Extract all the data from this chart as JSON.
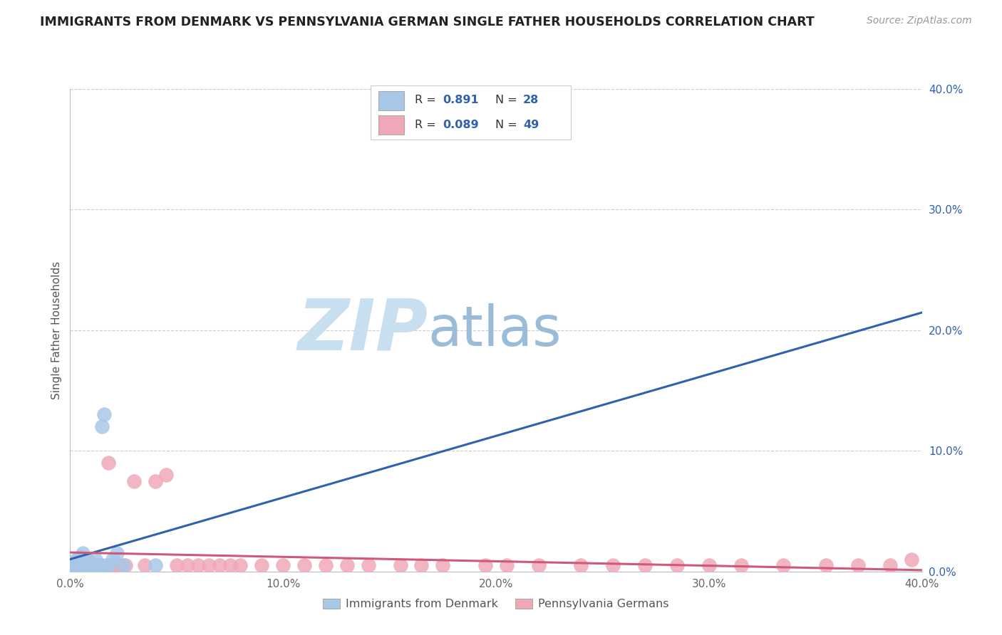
{
  "title": "IMMIGRANTS FROM DENMARK VS PENNSYLVANIA GERMAN SINGLE FATHER HOUSEHOLDS CORRELATION CHART",
  "source": "Source: ZipAtlas.com",
  "ylabel": "Single Father Households",
  "xlim": [
    0.0,
    0.4
  ],
  "ylim": [
    0.0,
    0.4
  ],
  "ytick_values": [
    0.0,
    0.1,
    0.2,
    0.3,
    0.4
  ],
  "ytick_labels": [
    "0.0%",
    "10.0%",
    "20.0%",
    "30.0%",
    "40.0%"
  ],
  "xtick_values": [
    0.0,
    0.1,
    0.2,
    0.3,
    0.4
  ],
  "xtick_labels": [
    "0.0%",
    "10.0%",
    "20.0%",
    "30.0%",
    "40.0%"
  ],
  "blue_R": 0.891,
  "blue_N": 28,
  "pink_R": 0.089,
  "pink_N": 49,
  "blue_color": "#a8c8e8",
  "pink_color": "#f0a8b8",
  "blue_line_color": "#3060b0",
  "pink_line_color": "#d05878",
  "legend_label_blue": "Immigrants from Denmark",
  "legend_label_pink": "Pennsylvania Germans",
  "background_color": "#ffffff",
  "grid_color": "#cccccc",
  "watermark_zip": "ZIP",
  "watermark_atlas": "atlas",
  "watermark_color_zip": "#c8dff0",
  "watermark_color_atlas": "#9abcd8",
  "blue_x": [
    0.001,
    0.002,
    0.002,
    0.003,
    0.003,
    0.004,
    0.004,
    0.005,
    0.005,
    0.006,
    0.006,
    0.007,
    0.008,
    0.008,
    0.009,
    0.01,
    0.011,
    0.012,
    0.013,
    0.014,
    0.015,
    0.016,
    0.017,
    0.018,
    0.02,
    0.022,
    0.025,
    0.04
  ],
  "blue_y": [
    0.005,
    0.005,
    0.008,
    0.005,
    0.01,
    0.005,
    0.01,
    0.005,
    0.012,
    0.008,
    0.015,
    0.005,
    0.01,
    0.005,
    0.008,
    0.005,
    0.005,
    0.01,
    0.005,
    0.005,
    0.12,
    0.13,
    0.005,
    0.005,
    0.01,
    0.015,
    0.005,
    0.005
  ],
  "pink_x": [
    0.001,
    0.003,
    0.005,
    0.007,
    0.009,
    0.011,
    0.013,
    0.015,
    0.018,
    0.02,
    0.023,
    0.026,
    0.03,
    0.035,
    0.04,
    0.045,
    0.05,
    0.055,
    0.06,
    0.065,
    0.07,
    0.075,
    0.08,
    0.09,
    0.1,
    0.11,
    0.12,
    0.13,
    0.14,
    0.155,
    0.165,
    0.175,
    0.195,
    0.205,
    0.22,
    0.24,
    0.255,
    0.27,
    0.285,
    0.3,
    0.315,
    0.335,
    0.355,
    0.37,
    0.385,
    0.395,
    0.005,
    0.01,
    0.02
  ],
  "pink_y": [
    0.005,
    0.005,
    0.005,
    0.005,
    0.005,
    0.005,
    0.005,
    0.005,
    0.09,
    0.005,
    0.005,
    0.005,
    0.075,
    0.005,
    0.075,
    0.08,
    0.005,
    0.005,
    0.005,
    0.005,
    0.005,
    0.005,
    0.005,
    0.005,
    0.005,
    0.005,
    0.005,
    0.005,
    0.005,
    0.005,
    0.005,
    0.005,
    0.005,
    0.005,
    0.005,
    0.005,
    0.005,
    0.005,
    0.005,
    0.005,
    0.005,
    0.005,
    0.005,
    0.005,
    0.005,
    0.01,
    0.005,
    0.005,
    0.005
  ]
}
